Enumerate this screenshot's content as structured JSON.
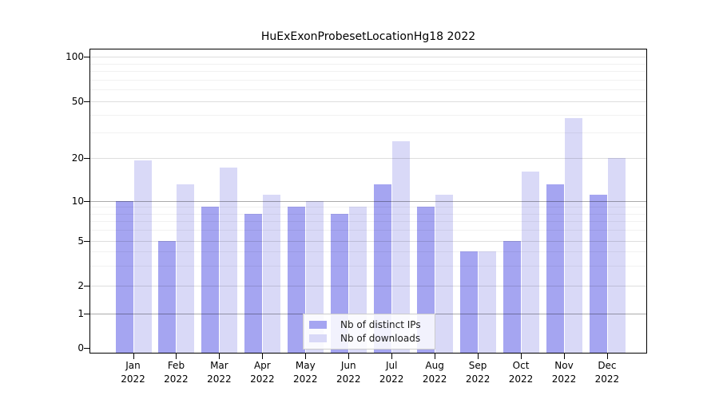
{
  "title": "HuExExonProbesetLocationHg18 2022",
  "colors": {
    "bar_distinct_ips": "#a5a5f1",
    "bar_downloads": "#d9d9f7",
    "axis": "#000000",
    "legend_border": "#cccccc",
    "grid_major": "#aaaaaa",
    "grid_minor": "#e8e8e8"
  },
  "legend": {
    "entries": [
      "Nb of distinct IPs",
      "Nb of downloads"
    ]
  },
  "chart_data": {
    "type": "bar",
    "title": "HuExExonProbesetLocationHg18 2022",
    "categories": [
      "Jan 2022",
      "Feb 2022",
      "Mar 2022",
      "Apr 2022",
      "May 2022",
      "Jun 2022",
      "Jul 2022",
      "Aug 2022",
      "Sep 2022",
      "Oct 2022",
      "Nov 2022",
      "Dec 2022"
    ],
    "series": [
      {
        "name": "Nb of distinct IPs",
        "color": "#a5a5f1",
        "values": [
          10,
          5,
          9,
          8,
          9,
          8,
          13,
          9,
          4,
          5,
          13,
          11
        ]
      },
      {
        "name": "Nb of downloads",
        "color": "#d9d9f7",
        "values": [
          19,
          13,
          17,
          11,
          10,
          9,
          26,
          11,
          4,
          16,
          38,
          20
        ]
      }
    ],
    "xlabel": "",
    "ylabel": "",
    "y_axis": {
      "scale": "pseudo-log",
      "tick_labels": [
        "0",
        "1",
        "2",
        "5",
        "10",
        "20",
        "50",
        "100"
      ],
      "tick_values": [
        0,
        1,
        2,
        5,
        10,
        20,
        50,
        100
      ],
      "minor_tick_values": [
        3,
        4,
        6,
        7,
        8,
        9,
        30,
        40,
        60,
        70,
        80,
        90
      ],
      "range": [
        0,
        100
      ]
    },
    "grid": true,
    "legend_position": "inside-bottom-center"
  }
}
